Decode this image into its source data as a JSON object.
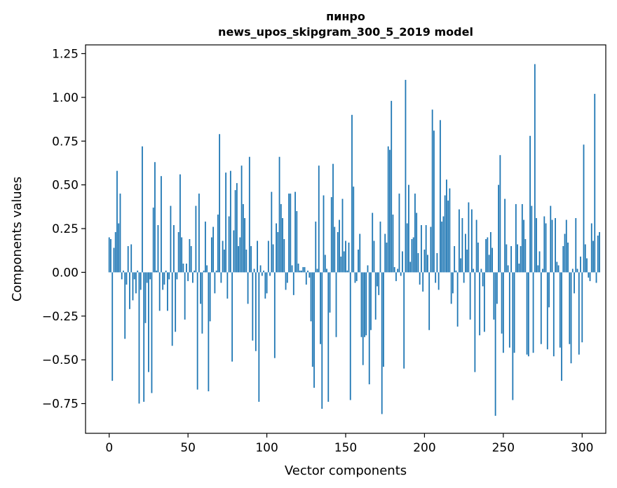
{
  "chart_data": {
    "type": "bar",
    "title_line1": "пинро",
    "title_line2": "news_upos_skipgram_300_5_2019 model",
    "xlabel": "Vector components",
    "ylabel": "Components values",
    "xlim": [
      -15,
      315
    ],
    "ylim": [
      -0.92,
      1.3
    ],
    "xticks": [
      0,
      50,
      100,
      150,
      200,
      250,
      300
    ],
    "xtick_labels": [
      "0",
      "50",
      "100",
      "150",
      "200",
      "250",
      "300"
    ],
    "yticks": [
      -0.75,
      -0.5,
      -0.25,
      0.0,
      0.25,
      0.5,
      0.75,
      1.0,
      1.25
    ],
    "ytick_labels": [
      "−0.75",
      "−0.50",
      "−0.25",
      "0.00",
      "0.25",
      "0.50",
      "0.75",
      "1.00",
      "1.25"
    ],
    "bar_color": "#1f77b4",
    "values": [
      0.2,
      0.19,
      -0.62,
      0.14,
      0.23,
      0.58,
      0.28,
      0.45,
      -0.04,
      0.01,
      -0.38,
      -0.07,
      0.15,
      -0.21,
      0.16,
      -0.16,
      -0.04,
      -0.12,
      0.01,
      -0.75,
      -0.1,
      0.72,
      -0.74,
      -0.29,
      -0.06,
      -0.57,
      -0.04,
      -0.69,
      0.37,
      0.63,
      0.01,
      0.27,
      -0.22,
      0.55,
      -0.1,
      -0.07,
      0.01,
      -0.22,
      -0.04,
      0.38,
      -0.42,
      0.27,
      -0.34,
      -0.04,
      0.23,
      0.56,
      0.2,
      0.05,
      -0.27,
      0.05,
      -0.05,
      0.19,
      0.15,
      -0.06,
      0.01,
      0.38,
      -0.67,
      0.45,
      -0.18,
      -0.35,
      0.01,
      0.29,
      0.04,
      -0.68,
      -0.28,
      0.2,
      0.26,
      -0.12,
      0.01,
      0.33,
      0.79,
      -0.06,
      0.18,
      0.13,
      0.57,
      -0.15,
      0.32,
      0.58,
      -0.51,
      0.24,
      0.47,
      0.51,
      0.15,
      0.2,
      0.61,
      0.39,
      0.31,
      0.13,
      -0.18,
      0.66,
      0.15,
      -0.39,
      0.02,
      -0.45,
      0.18,
      -0.74,
      0.04,
      -0.02,
      0.01,
      -0.15,
      -0.12,
      0.18,
      -0.02,
      0.46,
      0.16,
      -0.49,
      0.28,
      0.23,
      0.66,
      0.39,
      0.31,
      0.19,
      -0.1,
      -0.06,
      0.45,
      0.45,
      0.04,
      -0.13,
      0.46,
      0.35,
      0.05,
      0.01,
      0.01,
      0.03,
      0.03,
      -0.07,
      0.01,
      -0.03,
      -0.28,
      -0.54,
      -0.66,
      0.29,
      0.02,
      0.61,
      -0.41,
      -0.78,
      0.44,
      0.1,
      0.02,
      -0.74,
      -0.23,
      0.43,
      0.62,
      0.26,
      -0.37,
      0.23,
      0.3,
      0.09,
      0.42,
      0.12,
      0.18,
      0.01,
      0.17,
      -0.73,
      0.9,
      0.49,
      -0.06,
      -0.05,
      0.13,
      0.22,
      -0.37,
      -0.53,
      -0.37,
      -0.36,
      0.04,
      -0.64,
      -0.33,
      0.34,
      0.18,
      -0.27,
      -0.08,
      -0.13,
      0.29,
      -0.81,
      -0.54,
      0.22,
      0.17,
      0.72,
      0.7,
      0.98,
      0.33,
      0.03,
      -0.05,
      0.02,
      0.45,
      -0.02,
      0.12,
      -0.55,
      1.1,
      0.28,
      0.5,
      0.06,
      0.19,
      0.2,
      0.45,
      0.34,
      0.11,
      -0.07,
      0.27,
      -0.11,
      0.13,
      0.27,
      0.1,
      -0.33,
      0.26,
      0.93,
      0.81,
      -0.06,
      0.11,
      -0.1,
      0.87,
      0.29,
      0.32,
      0.44,
      0.53,
      0.41,
      0.48,
      -0.18,
      -0.12,
      0.15,
      0.01,
      -0.31,
      0.36,
      0.08,
      0.31,
      -0.06,
      0.22,
      0.13,
      0.4,
      -0.27,
      0.36,
      0.02,
      -0.57,
      0.3,
      0.17,
      -0.36,
      0.02,
      -0.08,
      -0.34,
      0.19,
      0.2,
      0.1,
      0.23,
      0.14,
      -0.27,
      -0.82,
      -0.18,
      0.5,
      0.67,
      -0.35,
      -0.46,
      0.42,
      0.16,
      0.04,
      -0.43,
      0.15,
      -0.73,
      -0.46,
      0.39,
      0.16,
      0.05,
      0.15,
      0.39,
      0.3,
      0.19,
      -0.47,
      -0.48,
      0.78,
      0.38,
      -0.46,
      1.19,
      0.31,
      0.04,
      0.12,
      -0.41,
      0.02,
      0.32,
      0.28,
      -0.44,
      -0.2,
      0.38,
      0.3,
      -0.48,
      0.31,
      0.06,
      0.04,
      -0.43,
      -0.62,
      0.15,
      0.22,
      0.3,
      0.17,
      -0.41,
      -0.52,
      0.02,
      -0.12,
      0.31,
      0.02,
      -0.47,
      0.09,
      -0.4,
      0.73,
      0.16,
      0.08,
      -0.03,
      -0.05,
      0.28,
      0.18,
      1.02,
      -0.06,
      0.21,
      0.23
    ]
  }
}
